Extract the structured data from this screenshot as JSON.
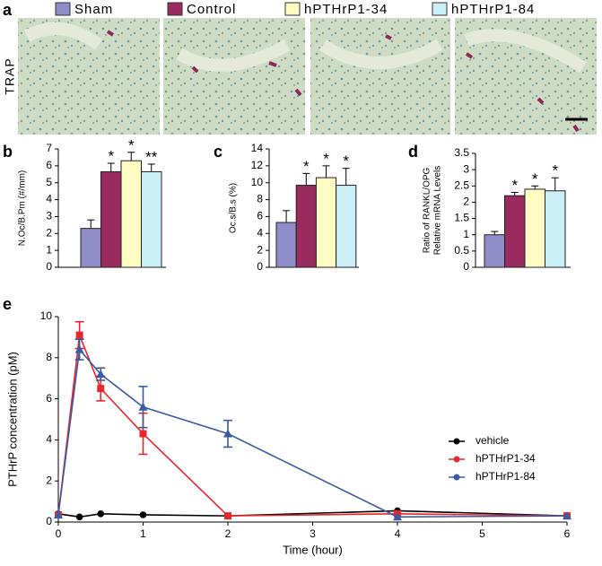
{
  "panel_a": {
    "label": "a",
    "side_label": "TRAP",
    "legend": [
      {
        "name": "Sham",
        "color": "#8f8cc8"
      },
      {
        "name": "Control",
        "color": "#9a2b5f"
      },
      {
        "name": "hPTHrP1-34",
        "color": "#fffbc2"
      },
      {
        "name": "hPTHrP1-84",
        "color": "#cbeef7"
      }
    ]
  },
  "chart_data": [
    {
      "type": "bar",
      "label": "b",
      "ylabel": [
        "N.Oc/B.Pm (#/mm)"
      ],
      "values": [
        2.3,
        5.65,
        6.3,
        5.65
      ],
      "errors": [
        0.5,
        0.5,
        0.5,
        0.45
      ],
      "annotations": [
        null,
        "*",
        "*",
        "**"
      ],
      "ylim": [
        0,
        7
      ],
      "yticks": [
        0,
        1,
        2,
        3,
        4,
        5,
        6,
        7
      ]
    },
    {
      "type": "bar",
      "label": "c",
      "ylabel": [
        "Oc.s/B.s (%)"
      ],
      "values": [
        5.3,
        9.7,
        10.6,
        9.7
      ],
      "errors": [
        1.4,
        1.4,
        1.4,
        2.0
      ],
      "annotations": [
        null,
        "*",
        "*",
        "*"
      ],
      "ylim": [
        0,
        14
      ],
      "yticks": [
        0,
        2,
        4,
        6,
        8,
        10,
        12,
        14
      ]
    },
    {
      "type": "bar",
      "label": "d",
      "ylabel": [
        "Ratio of RANKL/OPG",
        "Relative mRNA Levels"
      ],
      "values": [
        1.0,
        2.2,
        2.4,
        2.35
      ],
      "errors": [
        0.1,
        0.1,
        0.1,
        0.4
      ],
      "annotations": [
        null,
        "*",
        "*",
        "*"
      ],
      "ylim": [
        0,
        3.5
      ],
      "yticks": [
        0,
        0.5,
        1,
        1.5,
        2,
        2.5,
        3,
        3.5
      ]
    },
    {
      "type": "line",
      "label": "e",
      "xlabel": "Time (hour)",
      "ylabel": [
        "PTHrP concentration (pM)"
      ],
      "x": [
        0,
        0.25,
        0.5,
        1,
        2,
        4,
        6
      ],
      "series": [
        {
          "name": "vehicle",
          "color": "#000000",
          "marker": "circle",
          "values": [
            0.4,
            0.25,
            0.4,
            0.35,
            0.3,
            0.55,
            0.3
          ],
          "errors": [
            null,
            null,
            null,
            null,
            null,
            null,
            null
          ]
        },
        {
          "name": "hPTHrP1-34",
          "color": "#e8262b",
          "marker": "square",
          "values": [
            0.35,
            9.1,
            6.5,
            4.3,
            0.3,
            0.4,
            0.3
          ],
          "errors": [
            null,
            0.65,
            0.6,
            1.0,
            null,
            null,
            null
          ]
        },
        {
          "name": "hPTHrP1-84",
          "color": "#3b5aa6",
          "marker": "triangle",
          "values": [
            0.35,
            8.4,
            7.2,
            5.6,
            4.3,
            0.25,
            0.3
          ],
          "errors": [
            null,
            0.5,
            0.3,
            1.0,
            0.65,
            null,
            null
          ]
        }
      ],
      "xlim": [
        0,
        6
      ],
      "xticks": [
        0,
        1,
        2,
        3,
        4,
        5,
        6
      ],
      "ylim": [
        0,
        10
      ],
      "yticks": [
        0,
        2,
        4,
        6,
        8,
        10
      ]
    }
  ]
}
